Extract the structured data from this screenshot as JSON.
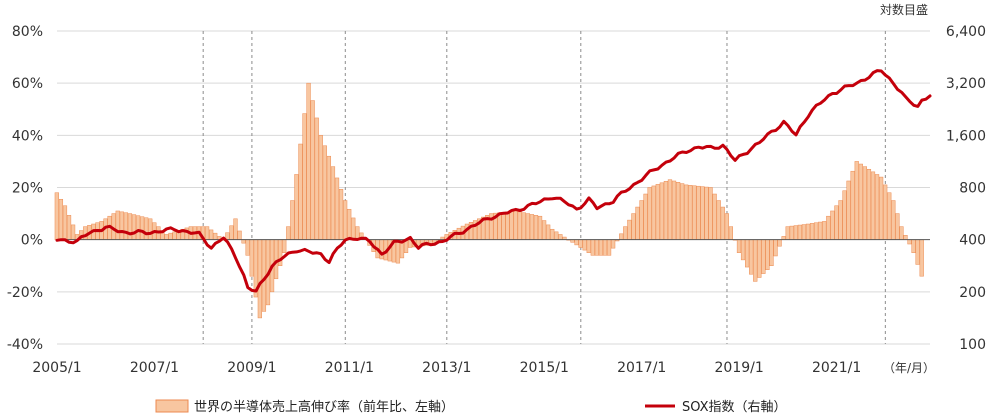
{
  "chart_data": {
    "type": "bar+line",
    "right_axis_note": "対数目盛",
    "unit_note": "（年/月）",
    "x_tick_labels": [
      "2005/1",
      "2007/1",
      "2009/1",
      "2011/1",
      "2013/1",
      "2015/1",
      "2017/1",
      "2019/1",
      "2021/1"
    ],
    "left_axis": {
      "ticks": [
        "80%",
        "60%",
        "40%",
        "20%",
        "0%",
        "-20%",
        "-40%"
      ],
      "range": [
        -40,
        80
      ]
    },
    "right_axis": {
      "ticks": [
        "6,400",
        "3,200",
        "1,600",
        "800",
        "400",
        "200",
        "100"
      ],
      "scale": "log2",
      "range": [
        100,
        6400
      ]
    },
    "cycle_markers": [
      "2008/1",
      "2009/1",
      "2010/12",
      "2013/1",
      "2015/10",
      "2018/10",
      "2022/1"
    ],
    "legend": {
      "bars": "世界の半導体売上高伸び率（前年比、左軸）",
      "line": "SOX指数（右軸）"
    },
    "colors": {
      "bar_fill": "#f8c6a0",
      "bar_stroke": "#ec8a50",
      "line": "#c4000b",
      "grid": "#d9d9d9",
      "dash": "#8c8c8c"
    },
    "series": [
      {
        "name": "世界の半導体売上高伸び率（前年比、左軸）",
        "kind": "bar",
        "anchors": [
          [
            "2005/01",
            18
          ],
          [
            "2005/03",
            13
          ],
          [
            "2005/06",
            2
          ],
          [
            "2005/08",
            5
          ],
          [
            "2005/12",
            7
          ],
          [
            "2006/04",
            11
          ],
          [
            "2006/07",
            10
          ],
          [
            "2006/12",
            8
          ],
          [
            "2007/04",
            2
          ],
          [
            "2007/10",
            5
          ],
          [
            "2008/02",
            5
          ],
          [
            "2008/06",
            0
          ],
          [
            "2008/09",
            8
          ],
          [
            "2008/12",
            -6
          ],
          [
            "2009/03",
            -30
          ],
          [
            "2009/05",
            -25
          ],
          [
            "2009/09",
            -5
          ],
          [
            "2009/12",
            25
          ],
          [
            "2010/03",
            60
          ],
          [
            "2010/06",
            40
          ],
          [
            "2010/09",
            28
          ],
          [
            "2010/12",
            15
          ],
          [
            "2011/03",
            5
          ],
          [
            "2011/08",
            -7
          ],
          [
            "2012/01",
            -9
          ],
          [
            "2012/04",
            -3
          ],
          [
            "2012/09",
            -2
          ],
          [
            "2013/01",
            2
          ],
          [
            "2013/06",
            6
          ],
          [
            "2013/12",
            10
          ],
          [
            "2014/06",
            11
          ],
          [
            "2014/12",
            9
          ],
          [
            "2015/03",
            4
          ],
          [
            "2015/09",
            -2
          ],
          [
            "2016/01",
            -6
          ],
          [
            "2016/05",
            -6
          ],
          [
            "2016/09",
            5
          ],
          [
            "2017/03",
            20
          ],
          [
            "2017/08",
            23
          ],
          [
            "2017/12",
            21
          ],
          [
            "2018/06",
            20
          ],
          [
            "2018/10",
            10
          ],
          [
            "2019/01",
            -5
          ],
          [
            "2019/05",
            -16
          ],
          [
            "2019/09",
            -10
          ],
          [
            "2020/01",
            5
          ],
          [
            "2020/06",
            6
          ],
          [
            "2020/10",
            7
          ],
          [
            "2021/02",
            15
          ],
          [
            "2021/06",
            30
          ],
          [
            "2021/09",
            27
          ],
          [
            "2021/12",
            24
          ],
          [
            "2022/03",
            15
          ],
          [
            "2022/05",
            5
          ],
          [
            "2022/08",
            -5
          ],
          [
            "2022/10",
            -14
          ]
        ]
      },
      {
        "name": "SOX指数（右軸）",
        "kind": "line",
        "anchors": [
          [
            "2005/01",
            400
          ],
          [
            "2005/06",
            390
          ],
          [
            "2005/09",
            440
          ],
          [
            "2006/01",
            470
          ],
          [
            "2006/06",
            440
          ],
          [
            "2006/12",
            440
          ],
          [
            "2007/06",
            460
          ],
          [
            "2007/12",
            430
          ],
          [
            "2008/03",
            360
          ],
          [
            "2008/06",
            410
          ],
          [
            "2008/09",
            320
          ],
          [
            "2008/12",
            210
          ],
          [
            "2009/02",
            200
          ],
          [
            "2009/06",
            280
          ],
          [
            "2009/09",
            320
          ],
          [
            "2009/12",
            350
          ],
          [
            "2010/06",
            330
          ],
          [
            "2010/08",
            300
          ],
          [
            "2010/12",
            400
          ],
          [
            "2011/03",
            410
          ],
          [
            "2011/06",
            390
          ],
          [
            "2011/09",
            330
          ],
          [
            "2011/12",
            380
          ],
          [
            "2012/04",
            410
          ],
          [
            "2012/06",
            360
          ],
          [
            "2012/09",
            380
          ],
          [
            "2012/12",
            390
          ],
          [
            "2013/06",
            460
          ],
          [
            "2013/12",
            540
          ],
          [
            "2014/06",
            590
          ],
          [
            "2014/12",
            660
          ],
          [
            "2015/03",
            710
          ],
          [
            "2015/06",
            660
          ],
          [
            "2015/09",
            600
          ],
          [
            "2015/12",
            680
          ],
          [
            "2016/02",
            610
          ],
          [
            "2016/06",
            670
          ],
          [
            "2016/12",
            860
          ],
          [
            "2017/06",
            1080
          ],
          [
            "2017/12",
            1300
          ],
          [
            "2018/03",
            1370
          ],
          [
            "2018/06",
            1350
          ],
          [
            "2018/09",
            1400
          ],
          [
            "2018/12",
            1140
          ],
          [
            "2019/06",
            1450
          ],
          [
            "2019/12",
            1900
          ],
          [
            "2020/03",
            1600
          ],
          [
            "2020/06",
            2100
          ],
          [
            "2020/12",
            2800
          ],
          [
            "2021/06",
            3200
          ],
          [
            "2021/12",
            3800
          ],
          [
            "2022/03",
            3200
          ],
          [
            "2022/06",
            2600
          ],
          [
            "2022/09",
            2350
          ],
          [
            "2022/10",
            2550
          ],
          [
            "2022/12",
            2700
          ]
        ]
      }
    ]
  }
}
